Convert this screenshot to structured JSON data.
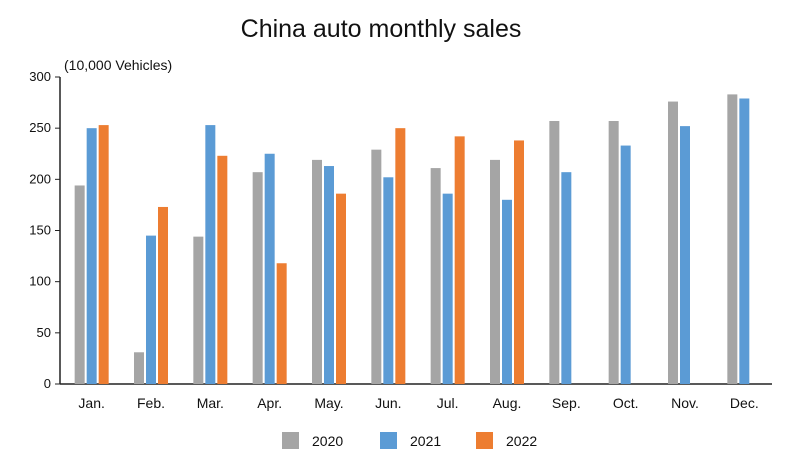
{
  "chart_data": {
    "type": "bar",
    "title": "China auto monthly sales",
    "unit_label": "(10,000 Vehicles)",
    "categories": [
      "Jan.",
      "Feb.",
      "Mar.",
      "Apr.",
      "May.",
      "Jun.",
      "Jul.",
      "Aug.",
      "Sep.",
      "Oct.",
      "Nov.",
      "Dec."
    ],
    "series": [
      {
        "name": "2020",
        "color": "#a5a5a5",
        "values": [
          194,
          31,
          144,
          207,
          219,
          229,
          211,
          219,
          257,
          257,
          276,
          283
        ]
      },
      {
        "name": "2021",
        "color": "#5b9bd5",
        "values": [
          250,
          145,
          253,
          225,
          213,
          202,
          186,
          180,
          207,
          233,
          252,
          279
        ]
      },
      {
        "name": "2022",
        "color": "#ed7d31",
        "values": [
          253,
          173,
          223,
          118,
          186,
          250,
          242,
          238,
          null,
          null,
          null,
          null
        ]
      }
    ],
    "ylim": [
      0,
      300
    ],
    "yticks": [
      0,
      50,
      100,
      150,
      200,
      250,
      300
    ],
    "grid": false,
    "legend_position": "bottom"
  }
}
